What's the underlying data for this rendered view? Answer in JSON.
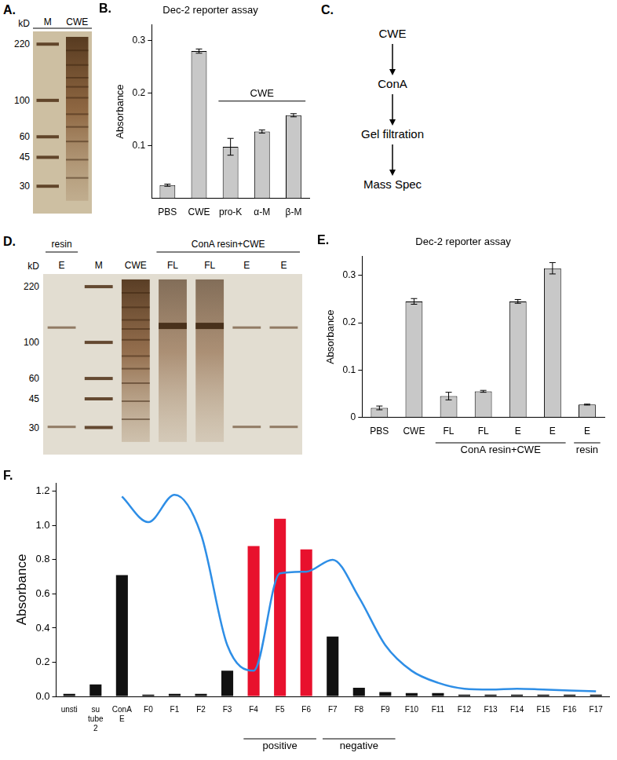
{
  "chart_data": [
    {
      "panel": "B.",
      "type": "bar",
      "title": "Dec-2 reporter assay",
      "y_label": "Absorbance",
      "categories": [
        "PBS",
        "CWE",
        "pro-K",
        "α-M",
        "β-M"
      ],
      "values": [
        0.025,
        0.28,
        0.098,
        0.127,
        0.158
      ],
      "errors": [
        0.002,
        0.004,
        0.016,
        0.003,
        0.003
      ],
      "color": "#c8c8c8",
      "ylim": [
        0,
        0.33
      ],
      "yticks": [
        0.1,
        0.2,
        0.3
      ],
      "grid": false,
      "brackets": [
        {
          "text": "CWE",
          "from": 2,
          "to": 4
        }
      ]
    },
    {
      "panel": "E.",
      "type": "bar",
      "title": "Dec-2 reporter assay",
      "y_label": "Absorbance",
      "categories": [
        "PBS",
        "CWE",
        "FL",
        "FL",
        "E",
        "E",
        "E"
      ],
      "values": [
        0.02,
        0.245,
        0.045,
        0.055,
        0.245,
        0.315,
        0.027
      ],
      "errors": [
        0.004,
        0.006,
        0.008,
        0.002,
        0.004,
        0.012,
        0.001
      ],
      "color": "#c8c8c8",
      "ylim": [
        0,
        0.34
      ],
      "yticks": [
        0,
        0.1,
        0.2,
        0.3
      ],
      "grid": false,
      "brackets": [
        {
          "text": "ConA resin+CWE",
          "from": 2,
          "to": 5
        },
        {
          "text": "resin",
          "from": 6,
          "to": 6
        }
      ]
    },
    {
      "panel": "F.",
      "type": "bar",
      "y_label": "Absorbance",
      "categories": [
        "unsti",
        "su tube 2",
        "ConA E",
        "F0",
        "F1",
        "F2",
        "F3",
        "F4",
        "F5",
        "F6",
        "F7",
        "F8",
        "F9",
        "F10",
        "F11",
        "F12",
        "F13",
        "F14",
        "F15",
        "F16",
        "F17"
      ],
      "series": [
        {
          "type": "bar",
          "values": [
            0.015,
            0.07,
            0.71,
            0.01,
            0.015,
            0.015,
            0.15,
            0.88,
            1.04,
            0.86,
            0.35,
            0.05,
            0.025,
            0.02,
            0.02,
            0.01,
            0.01,
            0.01,
            0.01,
            0.01,
            0.01
          ],
          "colors": [
            "#111111",
            "#111111",
            "#111111",
            "#111111",
            "#111111",
            "#111111",
            "#111111",
            "#e8112d",
            "#e8112d",
            "#e8112d",
            "#111111",
            "#111111",
            "#111111",
            "#111111",
            "#111111",
            "#111111",
            "#111111",
            "#111111",
            "#111111",
            "#111111",
            "#111111"
          ]
        },
        {
          "type": "line",
          "color": "#2e8ee6",
          "line_style": "solid",
          "marker": "none",
          "values": [
            null,
            null,
            1.17,
            1.02,
            1.18,
            0.95,
            0.3,
            0.15,
            0.72,
            0.73,
            0.8,
            0.58,
            0.3,
            0.15,
            0.08,
            0.045,
            0.04,
            0.045,
            0.04,
            0.035,
            0.03
          ]
        }
      ],
      "ylim": [
        0,
        1.25
      ],
      "yticks": [
        {
          "value": 0,
          "label": "0.0"
        },
        0.2,
        0.4,
        0.6,
        0.8,
        {
          "value": 1,
          "label": "1.0"
        },
        1.2
      ],
      "grid": false,
      "brackets": [
        {
          "text": "positive",
          "from": 7,
          "to": 9
        },
        {
          "text": "negative",
          "from": 10,
          "to": 12
        }
      ]
    }
  ],
  "gels": [
    {
      "panel": "A.",
      "unit": "kD",
      "markers": [
        220,
        100,
        60,
        45,
        30
      ],
      "lanes": [
        "M",
        "CWE"
      ]
    },
    {
      "panel": "D.",
      "unit": "kD",
      "markers": [
        220,
        100,
        60,
        45,
        30
      ],
      "lanes": [
        "E",
        "M",
        "CWE",
        "FL",
        "FL",
        "E",
        "E"
      ],
      "groups": [
        {
          "text": "resin",
          "from": 0,
          "to": 0
        },
        {
          "text": "ConA resin+CWE",
          "from": 3,
          "to": 6
        }
      ]
    }
  ],
  "flow": {
    "panel": "C.",
    "steps": [
      "CWE",
      "ConA",
      "Gel filtration",
      "Mass Spec"
    ]
  }
}
